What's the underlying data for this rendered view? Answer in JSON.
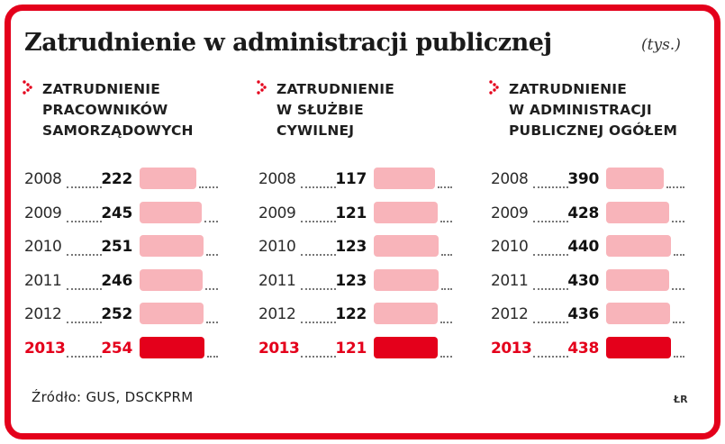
{
  "title": "Zatrudnienie w administracji publicznej",
  "unit": "(tys.)",
  "source": "Źródło: GUS, DSCKPRM",
  "logo": "ŁR",
  "colors": {
    "accent": "#e4001b",
    "bar_light": "#f8b4ba"
  },
  "icons": {
    "panel_marker": "red-dotted-chevron-icon"
  },
  "chart_data": [
    {
      "type": "bar",
      "title": "ZATRUDNIENIE\nPRACOWNIKÓW\nSAMORZĄDOWYCH",
      "categories": [
        "2008",
        "2009",
        "2010",
        "2011",
        "2012",
        "2013"
      ],
      "values": [
        222,
        245,
        251,
        246,
        252,
        254
      ],
      "highlight": "2013"
    },
    {
      "type": "bar",
      "title": "ZATRUDNIENIE\nW SŁUŻBIE\nCYWILNEJ",
      "categories": [
        "2008",
        "2009",
        "2010",
        "2011",
        "2012",
        "2013"
      ],
      "values": [
        117,
        121,
        123,
        123,
        122,
        121
      ],
      "highlight": "2013"
    },
    {
      "type": "bar",
      "title": "ZATRUDNIENIE\nW ADMINISTRACJI\nPUBLICZNEJ OGÓŁEM",
      "categories": [
        "2008",
        "2009",
        "2010",
        "2011",
        "2012",
        "2013"
      ],
      "values": [
        390,
        428,
        440,
        430,
        436,
        438
      ],
      "highlight": "2013"
    }
  ]
}
